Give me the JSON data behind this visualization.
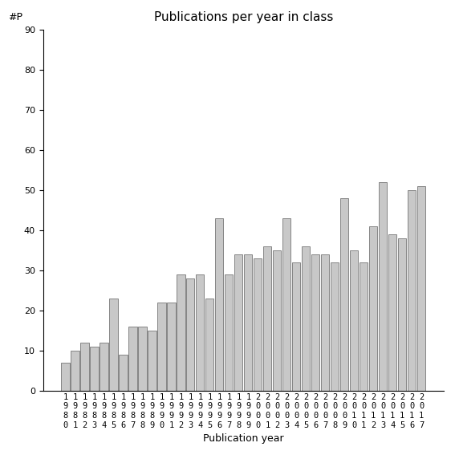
{
  "title": "Publications per year in class",
  "xlabel": "Publication year",
  "ylabel": "#P",
  "ylim": [
    0,
    90
  ],
  "yticks": [
    0,
    10,
    20,
    30,
    40,
    50,
    60,
    70,
    80,
    90
  ],
  "bar_color": "#c8c8c8",
  "bar_edgecolor": "#606060",
  "years": [
    1980,
    1981,
    1982,
    1983,
    1984,
    1985,
    1986,
    1987,
    1988,
    1989,
    1990,
    1991,
    1992,
    1993,
    1994,
    1995,
    1996,
    1997,
    1998,
    1999,
    2000,
    2001,
    2002,
    2003,
    2004,
    2005,
    2006,
    2007,
    2008,
    2009,
    2010,
    2011,
    2012,
    2013,
    2014,
    2015,
    2016,
    2017
  ],
  "values": [
    7,
    10,
    12,
    11,
    12,
    23,
    9,
    16,
    16,
    15,
    22,
    22,
    29,
    28,
    29,
    23,
    43,
    29,
    34,
    34,
    33,
    36,
    35,
    43,
    32,
    36,
    34,
    34,
    32,
    48,
    35,
    32,
    41,
    52,
    39,
    38,
    50,
    51
  ]
}
